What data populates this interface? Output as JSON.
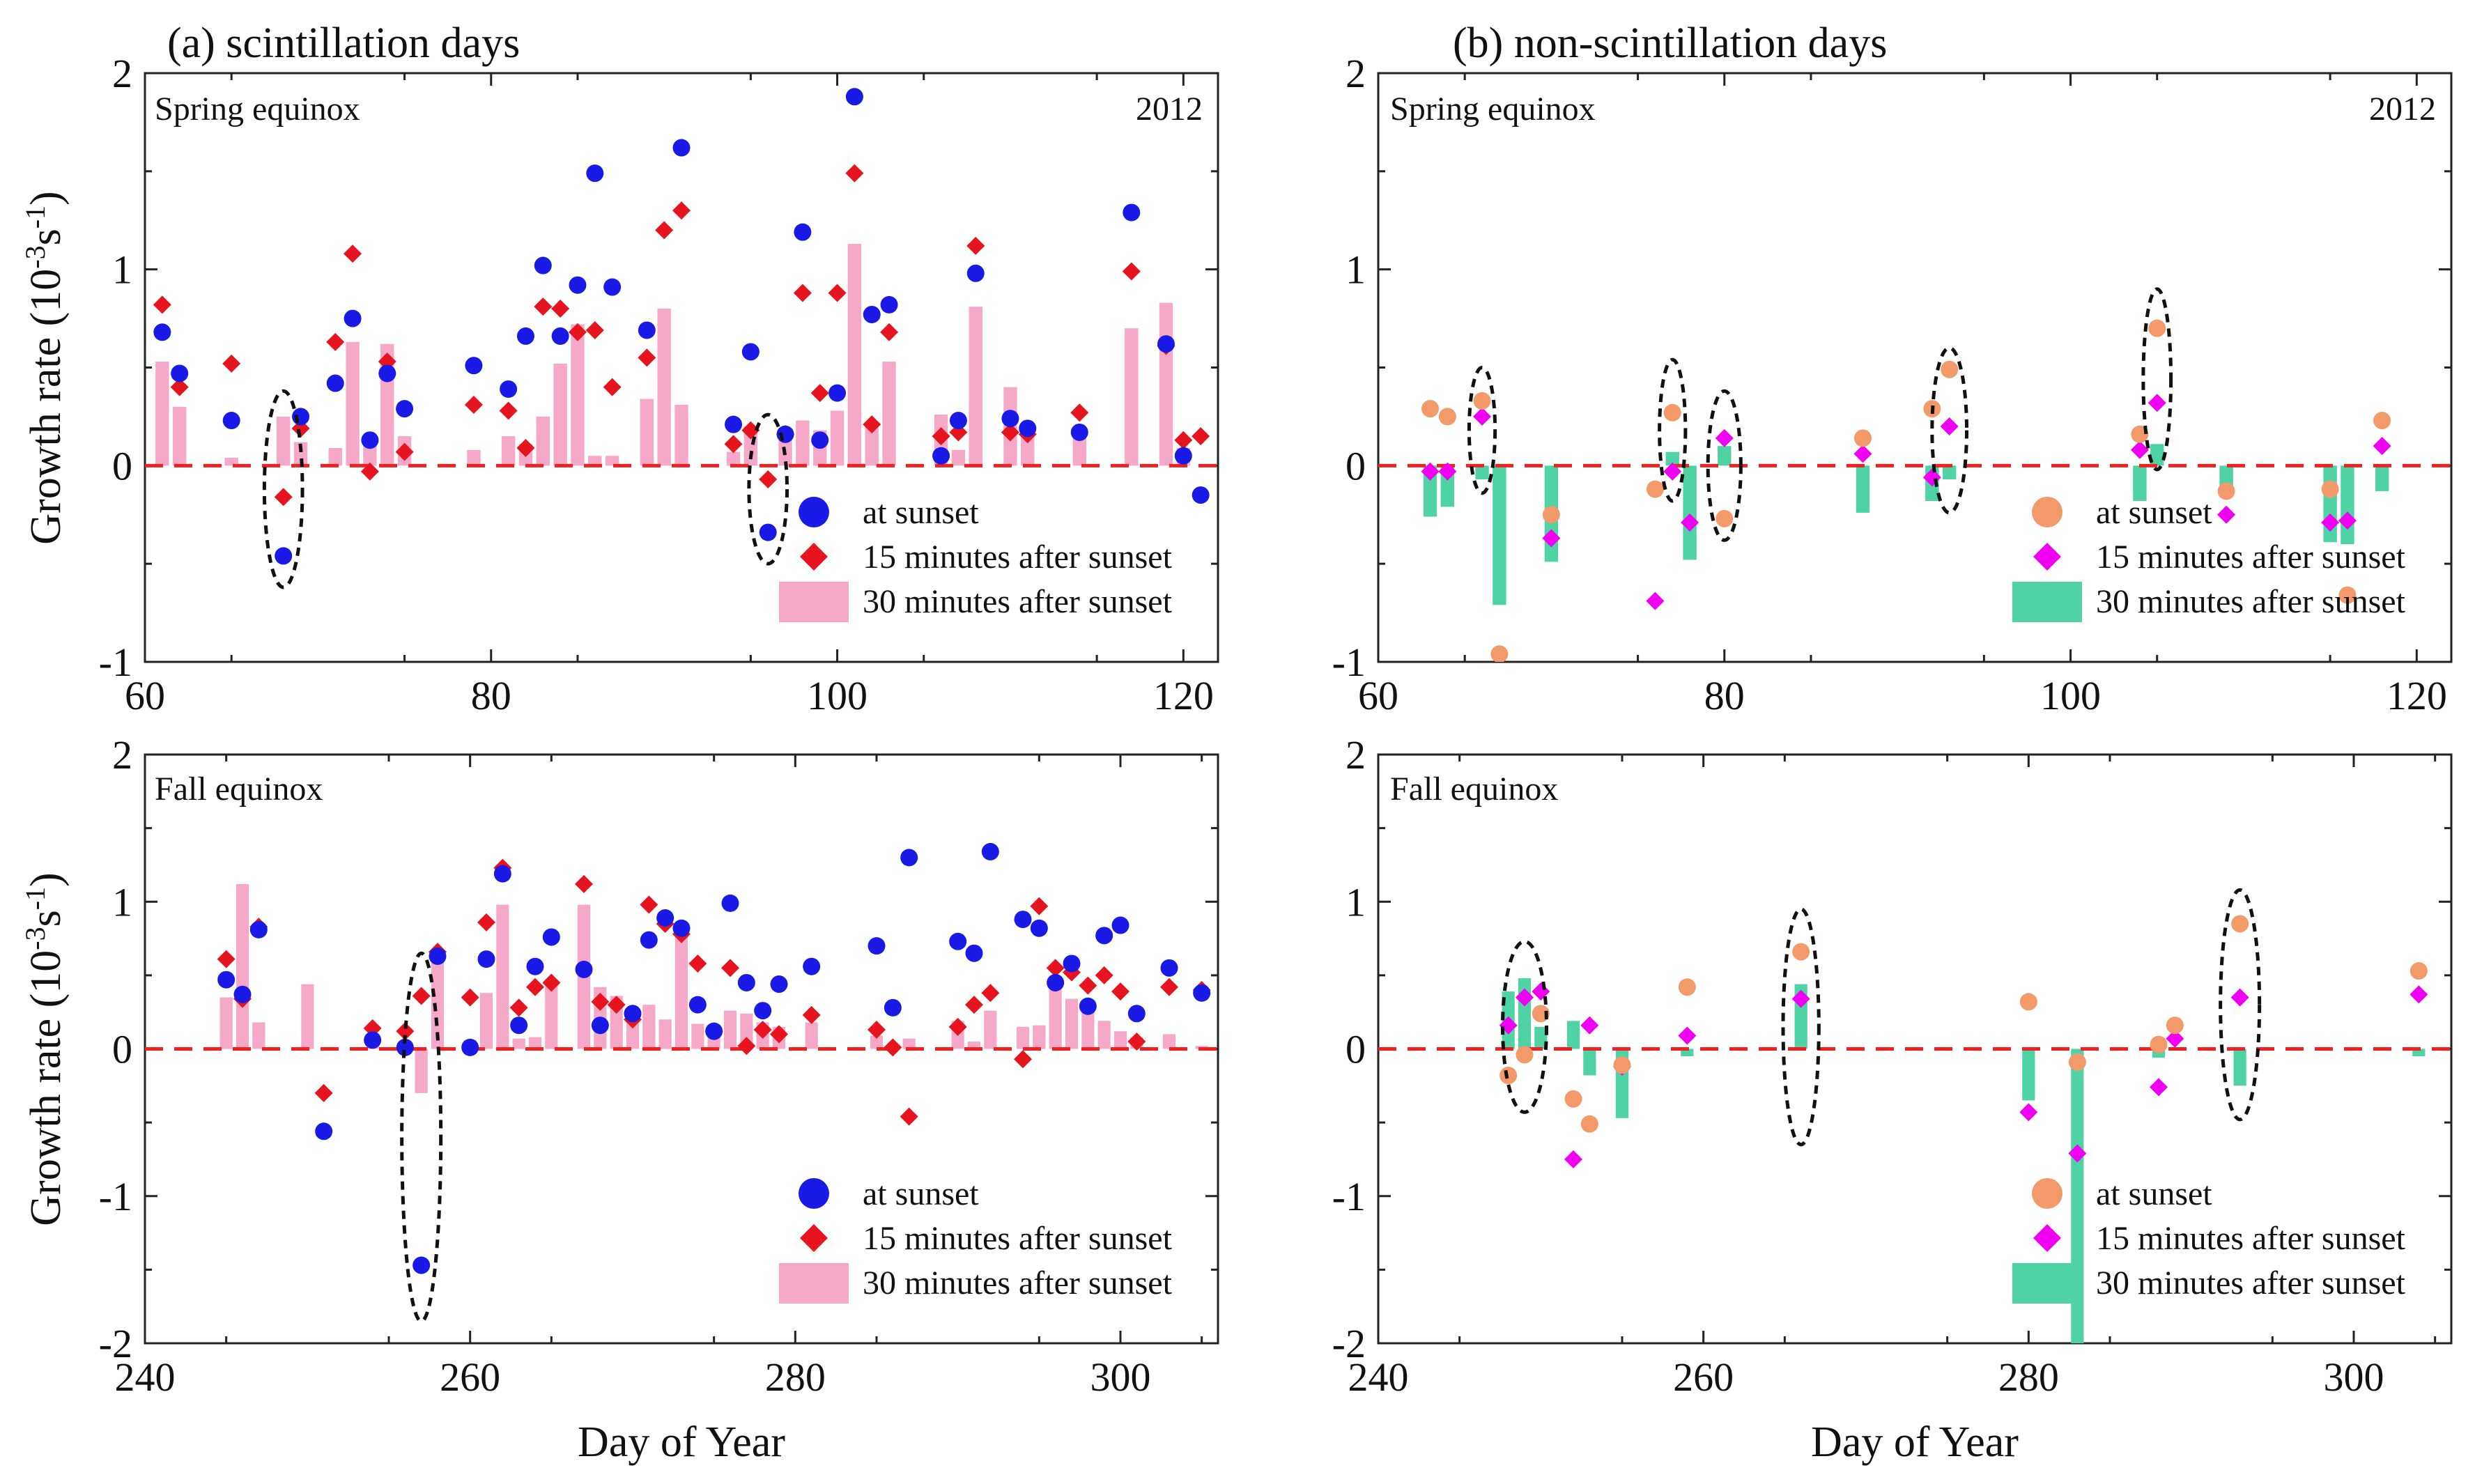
{
  "figure": {
    "ylabel_main": "Growth rate (10",
    "ylabel_exp": "-3",
    "ylabel_unit": "s",
    "ylabel_exp2": "-1",
    "ylabel_close": ")",
    "xlabel": "Day of Year"
  },
  "legend_labels": {
    "s0": "at sunset",
    "s15": "15 minutes after sunset",
    "s30": "30 minutes after sunset"
  },
  "colors": {
    "scint_s0": "#1a1ae6",
    "scint_s15": "#e6141e",
    "scint_s30": "#f6a8c8",
    "non_s0": "#f39a6a",
    "non_s15": "#f000f0",
    "non_s30": "#4fd3a5",
    "zero_line": "#ee2222"
  },
  "chart_data": [
    {
      "id": "a-top",
      "type": "scatter",
      "title": "(a)  scintillation days",
      "season": "Spring equinox",
      "year": "2012",
      "xlim": [
        60,
        122
      ],
      "ylim": [
        -1,
        2
      ],
      "xticks": [
        60,
        80,
        100,
        120
      ],
      "yticks": [
        -1,
        0,
        1,
        2
      ],
      "s0": [
        [
          61,
          0.68
        ],
        [
          62,
          0.47
        ],
        [
          65,
          0.23
        ],
        [
          68,
          -0.46
        ],
        [
          69,
          0.25
        ],
        [
          71,
          0.42
        ],
        [
          72,
          0.75
        ],
        [
          73,
          0.13
        ],
        [
          74,
          0.47
        ],
        [
          75,
          0.29
        ],
        [
          79,
          0.51
        ],
        [
          81,
          0.39
        ],
        [
          82,
          0.66
        ],
        [
          83,
          1.02
        ],
        [
          84,
          0.66
        ],
        [
          85,
          0.92
        ],
        [
          86,
          1.49
        ],
        [
          87,
          0.91
        ],
        [
          89,
          0.69
        ],
        [
          91,
          1.62
        ],
        [
          94,
          0.21
        ],
        [
          95,
          0.58
        ],
        [
          96,
          -0.34
        ],
        [
          97,
          0.16
        ],
        [
          98,
          1.19
        ],
        [
          99,
          0.13
        ],
        [
          100,
          0.37
        ],
        [
          101,
          1.88
        ],
        [
          102,
          0.77
        ],
        [
          103,
          0.82
        ],
        [
          106,
          0.05
        ],
        [
          107,
          0.23
        ],
        [
          108,
          0.98
        ],
        [
          110,
          0.24
        ],
        [
          111,
          0.19
        ],
        [
          114,
          0.17
        ],
        [
          117,
          1.29
        ],
        [
          119,
          0.62
        ],
        [
          120,
          0.05
        ],
        [
          121,
          -0.15
        ]
      ],
      "s15": [
        [
          61,
          0.82
        ],
        [
          62,
          0.4
        ],
        [
          65,
          0.52
        ],
        [
          68,
          -0.16
        ],
        [
          69,
          0.19
        ],
        [
          71,
          0.63
        ],
        [
          72,
          1.08
        ],
        [
          73,
          -0.03
        ],
        [
          74,
          0.53
        ],
        [
          75,
          0.07
        ],
        [
          79,
          0.31
        ],
        [
          81,
          0.28
        ],
        [
          82,
          0.09
        ],
        [
          83,
          0.81
        ],
        [
          84,
          0.8
        ],
        [
          85,
          0.68
        ],
        [
          86,
          0.69
        ],
        [
          87,
          0.4
        ],
        [
          89,
          0.55
        ],
        [
          90,
          1.2
        ],
        [
          91,
          1.3
        ],
        [
          94,
          0.11
        ],
        [
          95,
          0.18
        ],
        [
          96,
          -0.07
        ],
        [
          97,
          0.16
        ],
        [
          98,
          0.88
        ],
        [
          99,
          0.37
        ],
        [
          100,
          0.88
        ],
        [
          101,
          1.49
        ],
        [
          102,
          0.21
        ],
        [
          103,
          0.68
        ],
        [
          106,
          0.15
        ],
        [
          107,
          0.17
        ],
        [
          108,
          1.12
        ],
        [
          110,
          0.17
        ],
        [
          111,
          0.16
        ],
        [
          114,
          0.27
        ],
        [
          117,
          0.99
        ],
        [
          119,
          0.61
        ],
        [
          120,
          0.13
        ],
        [
          121,
          0.15
        ]
      ],
      "s30": [
        [
          61,
          0.53
        ],
        [
          62,
          0.3
        ],
        [
          65,
          0.04
        ],
        [
          68,
          0.25
        ],
        [
          69,
          0.12
        ],
        [
          71,
          0.09
        ],
        [
          72,
          0.63
        ],
        [
          73,
          0.11
        ],
        [
          74,
          0.62
        ],
        [
          75,
          0.15
        ],
        [
          79,
          0.08
        ],
        [
          81,
          0.15
        ],
        [
          82,
          0.11
        ],
        [
          83,
          0.25
        ],
        [
          84,
          0.52
        ],
        [
          85,
          0.72
        ],
        [
          86,
          0.05
        ],
        [
          87,
          0.05
        ],
        [
          89,
          0.34
        ],
        [
          90,
          0.8
        ],
        [
          91,
          0.31
        ],
        [
          94,
          0.07
        ],
        [
          95,
          0.2
        ],
        [
          97,
          0.18
        ],
        [
          98,
          0.23
        ],
        [
          99,
          0.18
        ],
        [
          100,
          0.28
        ],
        [
          101,
          1.13
        ],
        [
          102,
          0.21
        ],
        [
          103,
          0.53
        ],
        [
          106,
          0.26
        ],
        [
          107,
          0.08
        ],
        [
          108,
          0.81
        ],
        [
          110,
          0.4
        ],
        [
          111,
          0.19
        ],
        [
          114,
          0.18
        ],
        [
          117,
          0.7
        ],
        [
          119,
          0.83
        ],
        [
          120,
          0.09
        ]
      ],
      "ellipses": [
        [
          68,
          -0.12,
          1.1,
          0.5
        ],
        [
          96,
          -0.12,
          1.1,
          0.38
        ]
      ],
      "legend": "bottom-right"
    },
    {
      "id": "b-top",
      "type": "scatter",
      "title": "(b)  non-scintillation days",
      "season": "Spring equinox",
      "year": "2012",
      "xlim": [
        60,
        122
      ],
      "ylim": [
        -1,
        2
      ],
      "xticks": [
        60,
        80,
        100,
        120
      ],
      "yticks": [
        -1,
        0,
        1,
        2
      ],
      "s0": [
        [
          63,
          0.29
        ],
        [
          64,
          0.25
        ],
        [
          66,
          0.33
        ],
        [
          67,
          -0.96
        ],
        [
          70,
          -0.25
        ],
        [
          76,
          -0.12
        ],
        [
          77,
          0.27
        ],
        [
          80,
          -0.27
        ],
        [
          88,
          0.14
        ],
        [
          92,
          0.29
        ],
        [
          93,
          0.49
        ],
        [
          104,
          0.16
        ],
        [
          105,
          0.7
        ],
        [
          109,
          -0.13
        ],
        [
          115,
          -0.12
        ],
        [
          116,
          -0.66
        ],
        [
          118,
          0.23
        ]
      ],
      "s15": [
        [
          63,
          -0.03
        ],
        [
          64,
          -0.03
        ],
        [
          66,
          0.25
        ],
        [
          67,
          -1.02
        ],
        [
          70,
          -0.37
        ],
        [
          76,
          -0.69
        ],
        [
          77,
          -0.03
        ],
        [
          78,
          -0.29
        ],
        [
          80,
          0.14
        ],
        [
          88,
          0.06
        ],
        [
          92,
          -0.06
        ],
        [
          93,
          0.2
        ],
        [
          104,
          0.08
        ],
        [
          105,
          0.32
        ],
        [
          109,
          -0.25
        ],
        [
          115,
          -0.29
        ],
        [
          116,
          -0.28
        ],
        [
          118,
          0.1
        ]
      ],
      "s30": [
        [
          63,
          -0.26
        ],
        [
          64,
          -0.21
        ],
        [
          66,
          -0.07
        ],
        [
          67,
          -0.71
        ],
        [
          70,
          -0.49
        ],
        [
          77,
          0.07
        ],
        [
          78,
          -0.48
        ],
        [
          80,
          0.1
        ],
        [
          88,
          -0.24
        ],
        [
          92,
          -0.18
        ],
        [
          93,
          -0.07
        ],
        [
          104,
          -0.18
        ],
        [
          105,
          0.11
        ],
        [
          109,
          -0.11
        ],
        [
          115,
          -0.39
        ],
        [
          116,
          -0.4
        ],
        [
          118,
          -0.13
        ]
      ],
      "ellipses": [
        [
          66,
          0.18,
          0.75,
          0.32
        ],
        [
          77,
          0.18,
          0.75,
          0.36
        ],
        [
          80,
          0.0,
          0.95,
          0.38
        ],
        [
          93,
          0.18,
          1.0,
          0.42
        ],
        [
          105,
          0.44,
          0.8,
          0.46
        ]
      ],
      "legend": "bottom-right"
    },
    {
      "id": "a-bottom",
      "type": "scatter",
      "season": "Fall equinox",
      "xlim": [
        240,
        306
      ],
      "ylim": [
        -2,
        2
      ],
      "xticks": [
        240,
        260,
        280,
        300
      ],
      "yticks": [
        -2,
        -1,
        0,
        1,
        2
      ],
      "xlabel": "Day of Year",
      "s0": [
        [
          245,
          0.47
        ],
        [
          246,
          0.37
        ],
        [
          247,
          0.81
        ],
        [
          251,
          -0.56
        ],
        [
          254,
          0.06
        ],
        [
          256,
          0.01
        ],
        [
          257,
          -1.47
        ],
        [
          258,
          0.63
        ],
        [
          260,
          0.01
        ],
        [
          261,
          0.61
        ],
        [
          262,
          1.19
        ],
        [
          263,
          0.16
        ],
        [
          264,
          0.56
        ],
        [
          265,
          0.76
        ],
        [
          267,
          0.54
        ],
        [
          268,
          0.16
        ],
        [
          270,
          0.24
        ],
        [
          271,
          0.74
        ],
        [
          272,
          0.89
        ],
        [
          273,
          0.82
        ],
        [
          274,
          0.3
        ],
        [
          275,
          0.12
        ],
        [
          276,
          0.99
        ],
        [
          277,
          0.45
        ],
        [
          278,
          0.26
        ],
        [
          279,
          0.44
        ],
        [
          281,
          0.56
        ],
        [
          285,
          0.7
        ],
        [
          286,
          0.28
        ],
        [
          287,
          1.3
        ],
        [
          290,
          0.73
        ],
        [
          291,
          0.65
        ],
        [
          292,
          1.34
        ],
        [
          294,
          0.88
        ],
        [
          295,
          0.82
        ],
        [
          296,
          0.45
        ],
        [
          297,
          0.58
        ],
        [
          298,
          0.29
        ],
        [
          299,
          0.77
        ],
        [
          300,
          0.84
        ],
        [
          301,
          0.24
        ],
        [
          303,
          0.55
        ],
        [
          305,
          0.38
        ]
      ],
      "s15": [
        [
          245,
          0.61
        ],
        [
          246,
          0.34
        ],
        [
          247,
          0.83
        ],
        [
          251,
          -0.3
        ],
        [
          254,
          0.14
        ],
        [
          256,
          0.12
        ],
        [
          257,
          0.36
        ],
        [
          258,
          0.66
        ],
        [
          260,
          0.35
        ],
        [
          261,
          0.86
        ],
        [
          262,
          1.23
        ],
        [
          263,
          0.28
        ],
        [
          264,
          0.42
        ],
        [
          265,
          0.45
        ],
        [
          267,
          1.12
        ],
        [
          268,
          0.32
        ],
        [
          269,
          0.3
        ],
        [
          270,
          0.2
        ],
        [
          271,
          0.98
        ],
        [
          272,
          0.85
        ],
        [
          273,
          0.78
        ],
        [
          274,
          0.58
        ],
        [
          275,
          0.12
        ],
        [
          276,
          0.55
        ],
        [
          277,
          0.02
        ],
        [
          278,
          0.13
        ],
        [
          279,
          0.1
        ],
        [
          281,
          0.23
        ],
        [
          285,
          0.13
        ],
        [
          286,
          0.01
        ],
        [
          287,
          -0.46
        ],
        [
          290,
          0.15
        ],
        [
          291,
          0.3
        ],
        [
          292,
          0.38
        ],
        [
          294,
          -0.07
        ],
        [
          295,
          0.97
        ],
        [
          296,
          0.55
        ],
        [
          297,
          0.52
        ],
        [
          298,
          0.43
        ],
        [
          299,
          0.5
        ],
        [
          300,
          0.39
        ],
        [
          301,
          0.05
        ],
        [
          303,
          0.42
        ],
        [
          305,
          0.4
        ]
      ],
      "s30": [
        [
          245,
          0.35
        ],
        [
          246,
          1.12
        ],
        [
          247,
          0.18
        ],
        [
          250,
          0.44
        ],
        [
          254,
          0.08
        ],
        [
          257,
          -0.3
        ],
        [
          258,
          0.66
        ],
        [
          260,
          0.06
        ],
        [
          261,
          0.38
        ],
        [
          262,
          0.98
        ],
        [
          263,
          0.07
        ],
        [
          264,
          0.08
        ],
        [
          265,
          0.46
        ],
        [
          267,
          0.98
        ],
        [
          268,
          0.42
        ],
        [
          269,
          0.36
        ],
        [
          270,
          0.26
        ],
        [
          271,
          0.3
        ],
        [
          272,
          0.2
        ],
        [
          273,
          0.76
        ],
        [
          274,
          0.17
        ],
        [
          275,
          0.16
        ],
        [
          276,
          0.26
        ],
        [
          277,
          0.24
        ],
        [
          278,
          0.18
        ],
        [
          279,
          0.15
        ],
        [
          281,
          0.18
        ],
        [
          285,
          0.09
        ],
        [
          287,
          0.07
        ],
        [
          290,
          0.19
        ],
        [
          291,
          0.05
        ],
        [
          292,
          0.26
        ],
        [
          294,
          0.15
        ],
        [
          295,
          0.16
        ],
        [
          296,
          0.44
        ],
        [
          297,
          0.34
        ],
        [
          298,
          0.26
        ],
        [
          299,
          0.19
        ],
        [
          300,
          0.12
        ],
        [
          301,
          0.08
        ],
        [
          303,
          0.1
        ],
        [
          305,
          0.02
        ]
      ]
    }
  ]
}
